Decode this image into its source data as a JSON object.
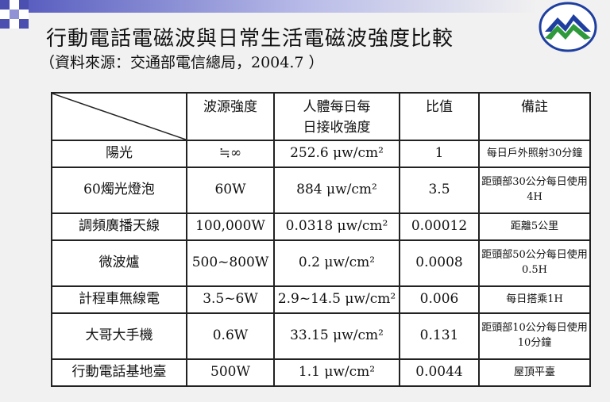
{
  "slide": {
    "title": "行動電話電磁波與日常生活電磁波強度比較",
    "subtitle": "（資料來源：交通部電信總局，2004.7 ）"
  },
  "brand": {
    "accent": "#4a4fb0",
    "logo_blue": "#1f3fa0",
    "logo_green": "#2e9a3c"
  },
  "table": {
    "headers": [
      "波源強度",
      "人體每日每日接收強度",
      "比值",
      "備註"
    ],
    "rows": [
      {
        "source": "陽光",
        "strength": "≒∞",
        "exposure": "252.6 μw/cm²",
        "ratio": "1",
        "note": "每日戶外照射30分鐘"
      },
      {
        "source": "60燭光燈泡",
        "strength": "60W",
        "exposure": "884 μw/cm²",
        "ratio": "3.5",
        "note": "距頭部30公分每日使用4H"
      },
      {
        "source": "調頻廣播天線",
        "strength": "100,000W",
        "exposure": "0.0318 μw/cm²",
        "ratio": "0.00012",
        "note": "距離5公里"
      },
      {
        "source": "微波爐",
        "strength": "500~800W",
        "exposure": "0.2 μw/cm²",
        "ratio": "0.0008",
        "note": "距頭部50公分每日使用0.5H"
      },
      {
        "source": "計程車無線電",
        "strength": "3.5~6W",
        "exposure": "2.9~14.5 μw/cm²",
        "ratio": "0.006",
        "note": "每日搭乘1H"
      },
      {
        "source": "大哥大手機",
        "strength": "0.6W",
        "exposure": "33.15 μw/cm²",
        "ratio": "0.131",
        "note": "距頭部10公分每日使用10分鐘"
      },
      {
        "source": "行動電話基地臺",
        "strength": "500W",
        "exposure": "1.1 μw/cm²",
        "ratio": "0.0044",
        "note": "屋頂平臺"
      }
    ]
  }
}
